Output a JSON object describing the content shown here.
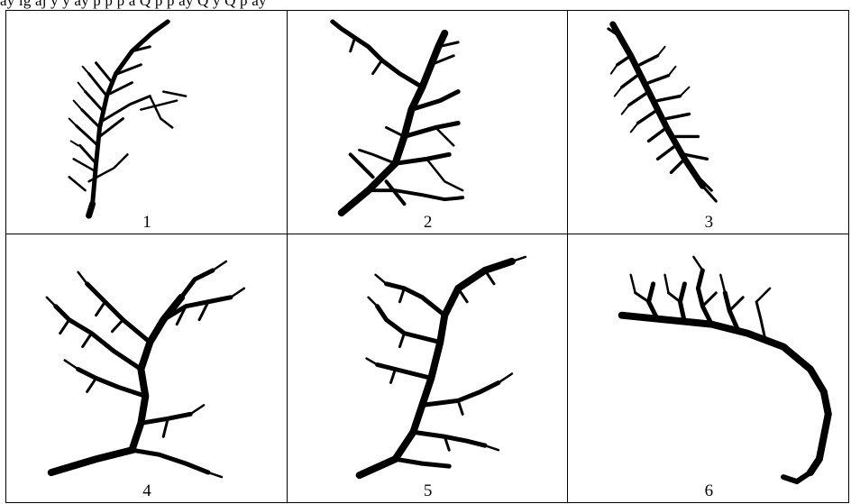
{
  "caption_fragment": "ay ig  aj y  y ay p p p   a  Q p  p  ay  Q  y Q p  ay",
  "panels": [
    {
      "number": "1",
      "icon": "narrow-dendritic-drainage-network"
    },
    {
      "number": "2",
      "icon": "branching-trunk-drainage-network"
    },
    {
      "number": "3",
      "icon": "elongated-leaf-drainage-network"
    },
    {
      "number": "4",
      "icon": "dense-dendritic-drainage-network"
    },
    {
      "number": "5",
      "icon": "parallel-dendritic-drainage-network"
    },
    {
      "number": "6",
      "icon": "arcuate-drainage-network"
    }
  ],
  "ink_color": "#000000"
}
